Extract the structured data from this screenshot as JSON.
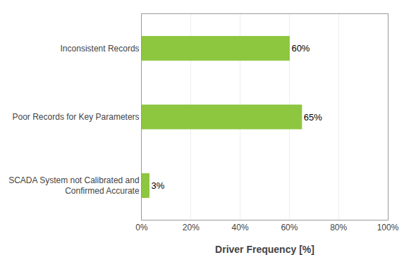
{
  "chart_data": {
    "type": "bar",
    "orientation": "horizontal",
    "categories": [
      "SCADA System not Calibrated and\n  Confirmed Accurate",
      "Poor Records for Key Parameters",
      "Inconsistent Records"
    ],
    "values": [
      3,
      65,
      60
    ],
    "value_labels": [
      "3%",
      "65%",
      "60%"
    ],
    "data_labels": true,
    "color": "#8DC63F",
    "xlabel": "Driver Frequency [%]",
    "xlim": [
      0,
      100
    ],
    "xticks": [
      {
        "value": 0,
        "label": "0%"
      },
      {
        "value": 20,
        "label": "20%"
      },
      {
        "value": 40,
        "label": "40%"
      },
      {
        "value": 60,
        "label": "60%"
      },
      {
        "value": 80,
        "label": "80%"
      },
      {
        "value": 100,
        "label": "100%"
      }
    ],
    "grid": true
  }
}
